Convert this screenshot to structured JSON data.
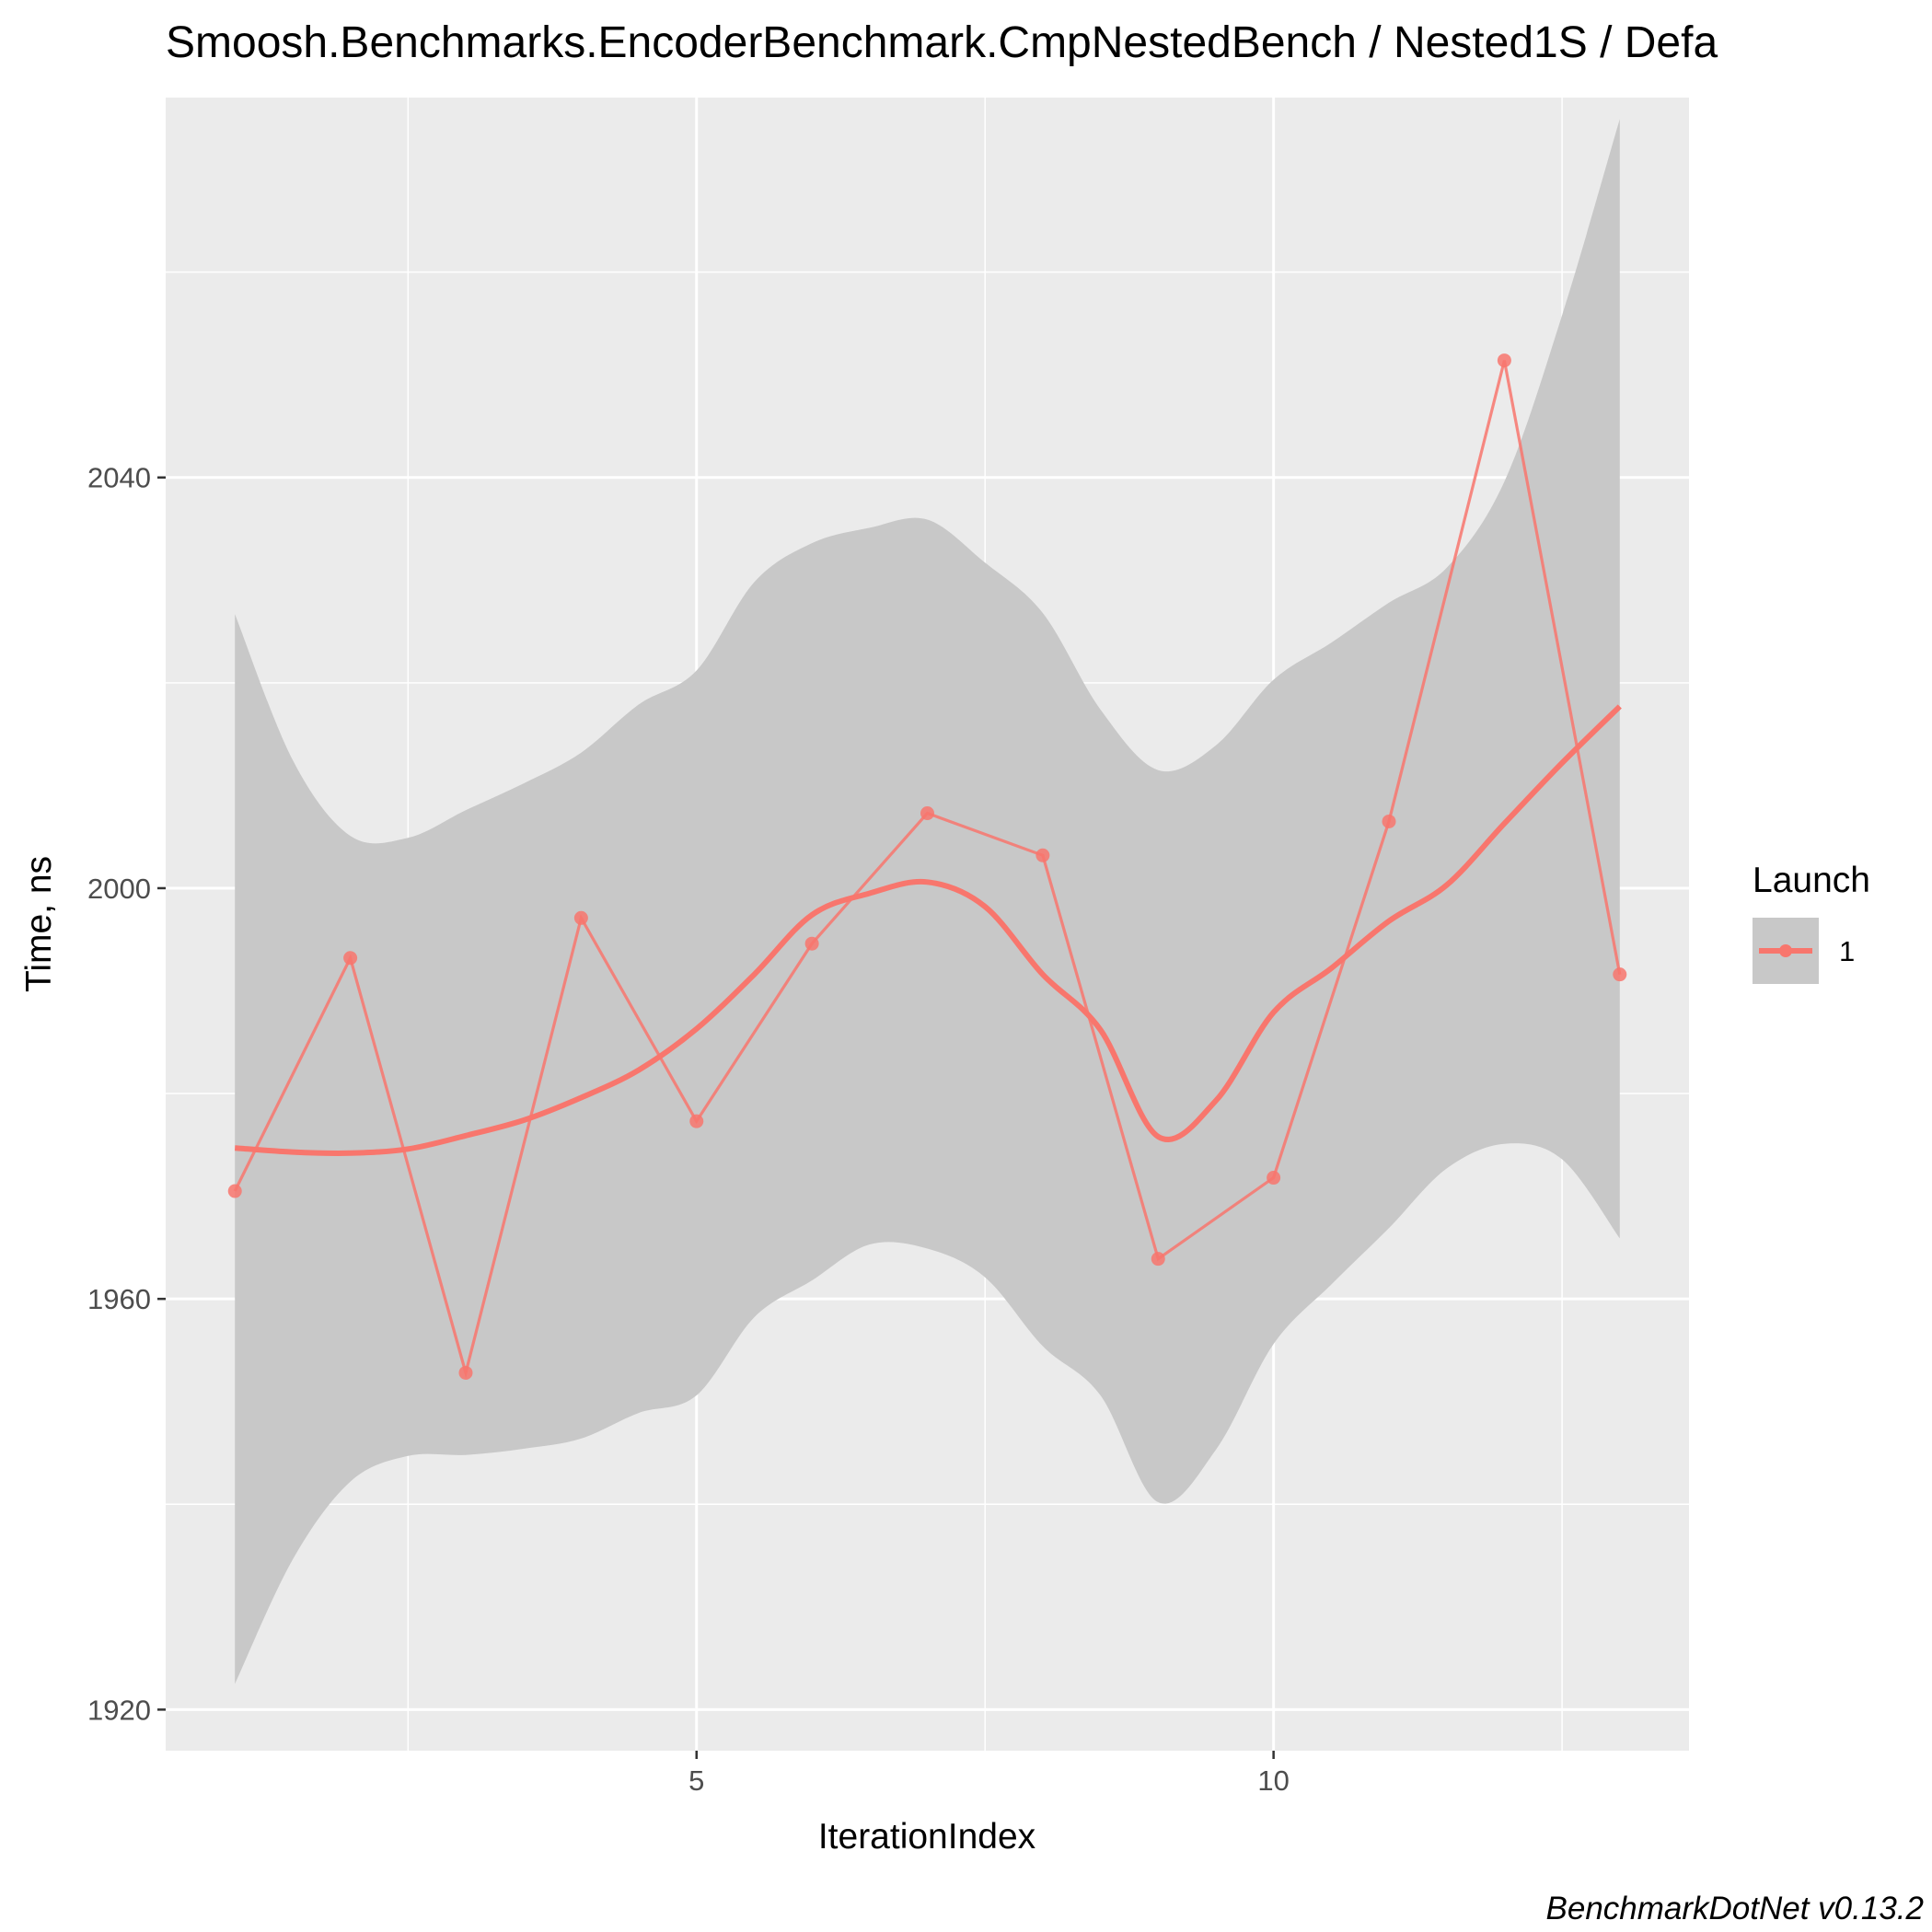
{
  "chart_data": {
    "type": "line",
    "title": "Smoosh.Benchmarks.EncoderBenchmark.CmpNestedBench / Nested1S / Defa",
    "xlabel": "IterationIndex",
    "ylabel": "Time, ns",
    "caption": "BenchmarkDotNet v0.13.2",
    "xlim": [
      0.4,
      13.6
    ],
    "ylim": [
      1916,
      2077
    ],
    "x_ticks": [
      5,
      10
    ],
    "y_ticks": [
      1920,
      1960,
      2000,
      2040
    ],
    "grid": true,
    "legend": {
      "title": "Launch",
      "placement": "right",
      "entries": [
        "1"
      ]
    },
    "colors": {
      "series": "#f8766d",
      "ribbon": "#c8c8c8",
      "panel": "#ebebeb",
      "grid": "#ffffff"
    },
    "series": [
      {
        "name": "1",
        "x": [
          1,
          2,
          3,
          4,
          5,
          6,
          7,
          8,
          9,
          10,
          11,
          12,
          13
        ],
        "y": [
          1970.5,
          1993.2,
          1952.8,
          1997.1,
          1977.3,
          1994.6,
          2007.3,
          2003.2,
          1963.9,
          1971.8,
          2006.5,
          2051.4,
          1991.6
        ]
      }
    ],
    "smooth": {
      "x": [
        1,
        1.5,
        2,
        2.5,
        3,
        3.5,
        4,
        4.5,
        5,
        5.5,
        6,
        6.5,
        7,
        7.5,
        8,
        8.5,
        9,
        9.5,
        10,
        10.5,
        11,
        11.5,
        12,
        12.5,
        13
      ],
      "y": [
        1974.7,
        1974.3,
        1974.2,
        1974.6,
        1975.9,
        1977.4,
        1979.6,
        1982.3,
        1986.3,
        1991.6,
        1997.4,
        1999.5,
        2000.6,
        1998.2,
        1991.6,
        1986.2,
        1975.8,
        1979.3,
        1987.9,
        1992.2,
        1996.8,
        2000.3,
        2006.3,
        2012.2,
        2017.7
      ]
    },
    "ribbon": {
      "x": [
        1,
        1.5,
        2,
        2.5,
        3,
        3.5,
        4,
        4.5,
        5,
        5.5,
        6,
        6.5,
        7,
        7.5,
        8,
        8.5,
        9,
        9.5,
        10,
        10.5,
        11,
        11.5,
        12,
        12.5,
        13
      ],
      "upper": [
        2026.7,
        2012.5,
        2005.1,
        2004.9,
        2007.6,
        2010.2,
        2013.2,
        2017.9,
        2021.2,
        2029.8,
        2033.6,
        2035.1,
        2035.9,
        2031.7,
        2026.8,
        2017.4,
        2011.5,
        2013.9,
        2020.3,
        2023.9,
        2027.8,
        2031.2,
        2039.6,
        2055.8,
        2074.9
      ],
      "lower": [
        1922.5,
        1934.6,
        1942.2,
        1944.7,
        1944.8,
        1945.4,
        1946.4,
        1948.9,
        1950.6,
        1958.2,
        1961.8,
        1965.3,
        1964.9,
        1962.1,
        1955.4,
        1950.6,
        1940.2,
        1945.3,
        1955.6,
        1961.4,
        1966.9,
        1972.7,
        1975.1,
        1973.6,
        1965.9
      ]
    }
  }
}
